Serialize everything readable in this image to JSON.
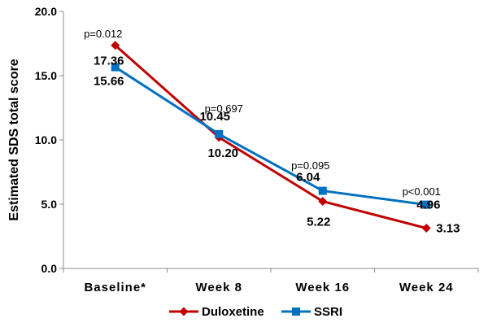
{
  "chart_data": {
    "type": "line",
    "title": "",
    "xlabel": "",
    "ylabel": "Estimated SDS total score",
    "categories": [
      "Baseline*",
      "Week 8",
      "Week 16",
      "Week 24"
    ],
    "ylim": [
      0,
      20
    ],
    "yticks": [
      "0.0",
      "5.0",
      "10.0",
      "15.0",
      "20.0"
    ],
    "grid": false,
    "legend_position": "bottom",
    "series": [
      {
        "name": "Duloxetine",
        "color": "#C00000",
        "marker": "diamond",
        "values": [
          17.36,
          10.2,
          5.22,
          3.13
        ],
        "labels": [
          "17.36",
          "10.20",
          "5.22",
          "3.13"
        ]
      },
      {
        "name": "SSRI",
        "color": "#0070C0",
        "marker": "square",
        "values": [
          15.66,
          10.45,
          6.04,
          4.96
        ],
        "labels": [
          "15.66",
          "10.45",
          "6.04",
          "4.96"
        ]
      }
    ],
    "annotations": [
      "p=0.012",
      "p=0.697",
      "p=0.095",
      "p<0.001"
    ]
  }
}
